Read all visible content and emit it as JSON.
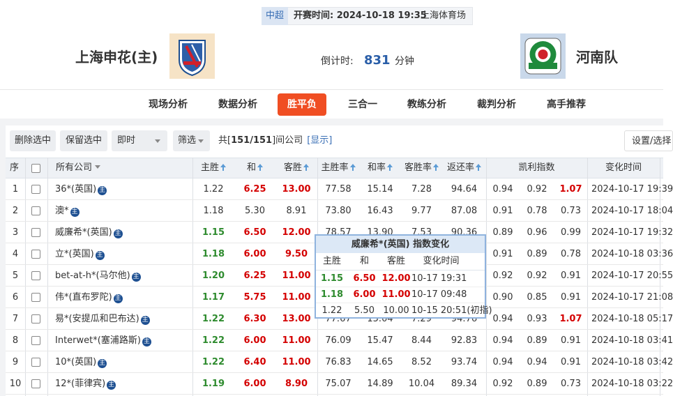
{
  "header": {
    "league": "中超",
    "kickoff": "开赛时间: 2024-10-18 19:35",
    "venue": "上海体育场",
    "home_team": "上海申花(主)",
    "away_team": "河南队",
    "countdown_label": "倒计时:",
    "countdown": "831",
    "countdown_unit": "分钟"
  },
  "tabs": [
    "现场分析",
    "数据分析",
    "胜平负",
    "三合一",
    "教练分析",
    "裁判分析",
    "高手推荐"
  ],
  "active_tab": 2,
  "toolbar": {
    "delete": "删除选中",
    "keep": "保留选中",
    "mode": "即时",
    "filter": "筛选",
    "count_prefix": "共[",
    "count": "151/151",
    "count_suffix": "]间公司",
    "show": "[显示]",
    "settings": "设置/选择"
  },
  "table": {
    "columns": [
      "序",
      "所有公司",
      "主胜",
      "和",
      "客胜",
      "主胜率",
      "和率",
      "客胜率",
      "返还率",
      "凯利指数",
      "变化时间"
    ],
    "company_badge": "主",
    "rows": [
      {
        "no": "1",
        "company": "36*(英国)",
        "odds": [
          "1.22",
          "6.25",
          "13.00"
        ],
        "odds_colors": [
          "#333333",
          "#d40000",
          "#d40000"
        ],
        "rates": [
          "77.58",
          "15.14",
          "7.28",
          "94.64"
        ],
        "kelly": [
          "0.94",
          "0.92",
          "1.07"
        ],
        "kelly_colors": [
          "#333333",
          "#333333",
          "#d40000"
        ],
        "time": "2024-10-17 19:39"
      },
      {
        "no": "2",
        "company": "澳*",
        "odds": [
          "1.18",
          "5.30",
          "8.91"
        ],
        "odds_colors": [
          "#333333",
          "#333333",
          "#333333"
        ],
        "rates": [
          "73.80",
          "16.43",
          "9.77",
          "87.08"
        ],
        "kelly": [
          "0.91",
          "0.78",
          "0.73"
        ],
        "kelly_colors": [
          "#333333",
          "#333333",
          "#333333"
        ],
        "time": "2024-10-17 18:04"
      },
      {
        "no": "3",
        "company": "威廉希*(英国)",
        "odds": [
          "1.15",
          "6.50",
          "12.00"
        ],
        "odds_colors": [
          "#2e8b2e",
          "#d40000",
          "#d40000"
        ],
        "rates": [
          "78.57",
          "13.90",
          "7.53",
          "90.36"
        ],
        "kelly": [
          "0.89",
          "0.96",
          "0.99"
        ],
        "kelly_colors": [
          "#333333",
          "#333333",
          "#333333"
        ],
        "time": "2024-10-17 19:32"
      },
      {
        "no": "4",
        "company": "立*(英国)",
        "odds": [
          "1.18",
          "6.00",
          "9.50"
        ],
        "odds_colors": [
          "#2e8b2e",
          "#d40000",
          "#d40000"
        ],
        "rates": null,
        "kelly": [
          "0.91",
          "0.89",
          "0.78"
        ],
        "kelly_colors": [
          "#333333",
          "#333333",
          "#333333"
        ],
        "time": "2024-10-18 03:36"
      },
      {
        "no": "5",
        "company": "bet-at-h*(马尔他)",
        "odds": [
          "1.20",
          "6.25",
          "11.00"
        ],
        "odds_colors": [
          "#2e8b2e",
          "#d40000",
          "#d40000"
        ],
        "rates": null,
        "kelly": [
          "0.92",
          "0.92",
          "0.91"
        ],
        "kelly_colors": [
          "#333333",
          "#333333",
          "#333333"
        ],
        "time": "2024-10-17 20:55"
      },
      {
        "no": "6",
        "company": "伟*(直布罗陀)",
        "odds": [
          "1.17",
          "5.75",
          "11.00"
        ],
        "odds_colors": [
          "#2e8b2e",
          "#d40000",
          "#d40000"
        ],
        "rates": null,
        "kelly": [
          "0.90",
          "0.85",
          "0.91"
        ],
        "kelly_colors": [
          "#333333",
          "#333333",
          "#333333"
        ],
        "time": "2024-10-17 21:08"
      },
      {
        "no": "7",
        "company": "易*(安提瓜和巴布达)",
        "odds": [
          "1.22",
          "6.30",
          "13.00"
        ],
        "odds_colors": [
          "#2e8b2e",
          "#d40000",
          "#d40000"
        ],
        "rates": [
          "77.67",
          "15.04",
          "7.29",
          "94.76"
        ],
        "kelly": [
          "0.94",
          "0.93",
          "1.07"
        ],
        "kelly_colors": [
          "#333333",
          "#333333",
          "#d40000"
        ],
        "time": "2024-10-18 05:17"
      },
      {
        "no": "8",
        "company": "Interwet*(塞浦路斯)",
        "odds": [
          "1.22",
          "6.00",
          "11.00"
        ],
        "odds_colors": [
          "#2e8b2e",
          "#d40000",
          "#d40000"
        ],
        "rates": [
          "76.09",
          "15.47",
          "8.44",
          "92.83"
        ],
        "kelly": [
          "0.94",
          "0.89",
          "0.91"
        ],
        "kelly_colors": [
          "#333333",
          "#333333",
          "#333333"
        ],
        "time": "2024-10-18 03:41"
      },
      {
        "no": "9",
        "company": "10*(英国)",
        "odds": [
          "1.22",
          "6.40",
          "11.00"
        ],
        "odds_colors": [
          "#2e8b2e",
          "#d40000",
          "#d40000"
        ],
        "rates": [
          "76.83",
          "14.65",
          "8.52",
          "93.74"
        ],
        "kelly": [
          "0.94",
          "0.94",
          "0.91"
        ],
        "kelly_colors": [
          "#333333",
          "#333333",
          "#333333"
        ],
        "time": "2024-10-18 03:42"
      },
      {
        "no": "10",
        "company": "12*(菲律宾)",
        "odds": [
          "1.19",
          "6.00",
          "8.90"
        ],
        "odds_colors": [
          "#2e8b2e",
          "#d40000",
          "#d40000"
        ],
        "rates": [
          "75.07",
          "14.89",
          "10.04",
          "89.34"
        ],
        "kelly": [
          "0.92",
          "0.89",
          "0.73"
        ],
        "kelly_colors": [
          "#333333",
          "#333333",
          "#333333"
        ],
        "time": "2024-10-18 03:22"
      }
    ]
  },
  "popup": {
    "title": "威廉希*(英国) 指数变化",
    "columns": [
      "主胜",
      "和",
      "客胜",
      "变化时间"
    ],
    "rows": [
      {
        "odds": [
          "1.15",
          "6.50",
          "12.00"
        ],
        "colors": [
          "#2e8b2e",
          "#d40000",
          "#d40000"
        ],
        "time": "10-17 19:31"
      },
      {
        "odds": [
          "1.18",
          "6.00",
          "11.00"
        ],
        "colors": [
          "#2e8b2e",
          "#d40000",
          "#d40000"
        ],
        "time": "10-17 09:48"
      },
      {
        "odds": [
          "1.22",
          "5.50",
          "10.00"
        ],
        "colors": [
          "#333333",
          "#333333",
          "#333333"
        ],
        "time": "10-15 20:51(初指)"
      }
    ]
  }
}
